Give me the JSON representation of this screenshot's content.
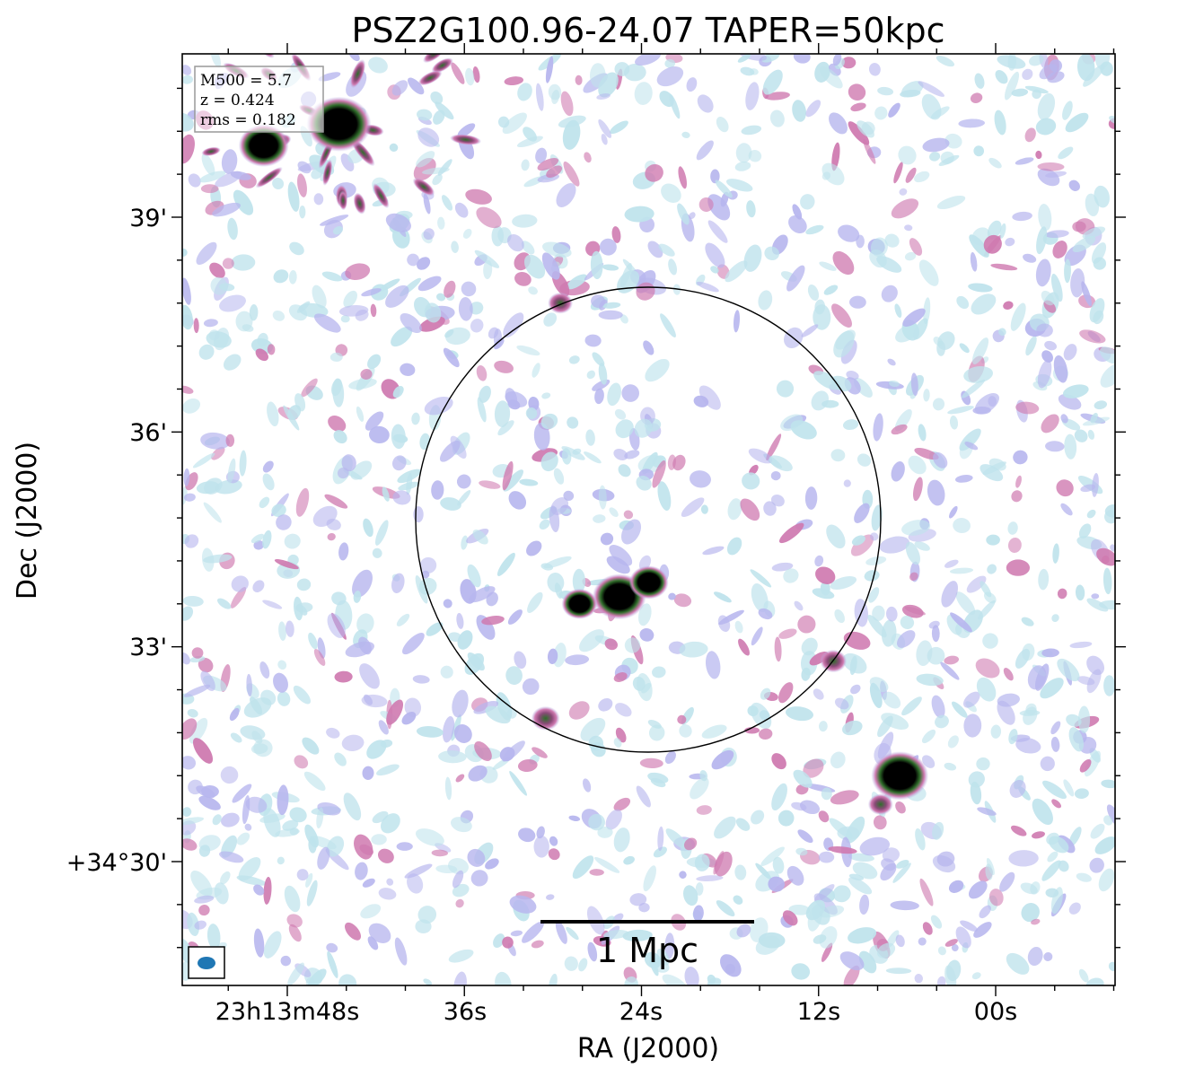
{
  "chart_data": {
    "type": "heatmap",
    "title": "PSZ2G100.96-24.07 TAPER=50kpc",
    "xlabel": "RA (J2000)",
    "ylabel": "Dec (J2000)",
    "x_ticks": [
      "23h13m48s",
      "36s",
      "24s",
      "12s",
      "00s"
    ],
    "y_ticks": [
      "39'",
      "36'",
      "33'",
      "+34°30'"
    ],
    "info_box": [
      "M500 = 5.7",
      "z = 0.424",
      "rms = 0.182"
    ],
    "scale_bar_label": "1 Mpc",
    "colormap": [
      "#ffffff",
      "#bfe3ec",
      "#b7b6ee",
      "#cf7ab0",
      "#2f6e2a",
      "#000000"
    ],
    "circle_color": "#000000",
    "beam_color": "#1f77b4",
    "bright_sources": [
      {
        "ra_s": 49.6,
        "dec_arcmin": 40.0
      },
      {
        "ra_s": 44.5,
        "dec_arcmin": 40.3
      },
      {
        "ra_s": 25.5,
        "dec_arcmin": 33.7
      },
      {
        "ra_s": 23.5,
        "dec_arcmin": 33.9
      },
      {
        "ra_s": 28.2,
        "dec_arcmin": 33.6
      },
      {
        "ra_s": 6.5,
        "dec_arcmin": 31.2
      },
      {
        "ra_s": 7.8,
        "dec_arcmin": 30.8
      },
      {
        "ra_s": 29.5,
        "dec_arcmin": 37.8
      },
      {
        "ra_s": 30.5,
        "dec_arcmin": 32.0
      },
      {
        "ra_s": 11.0,
        "dec_arcmin": 32.8
      }
    ]
  }
}
